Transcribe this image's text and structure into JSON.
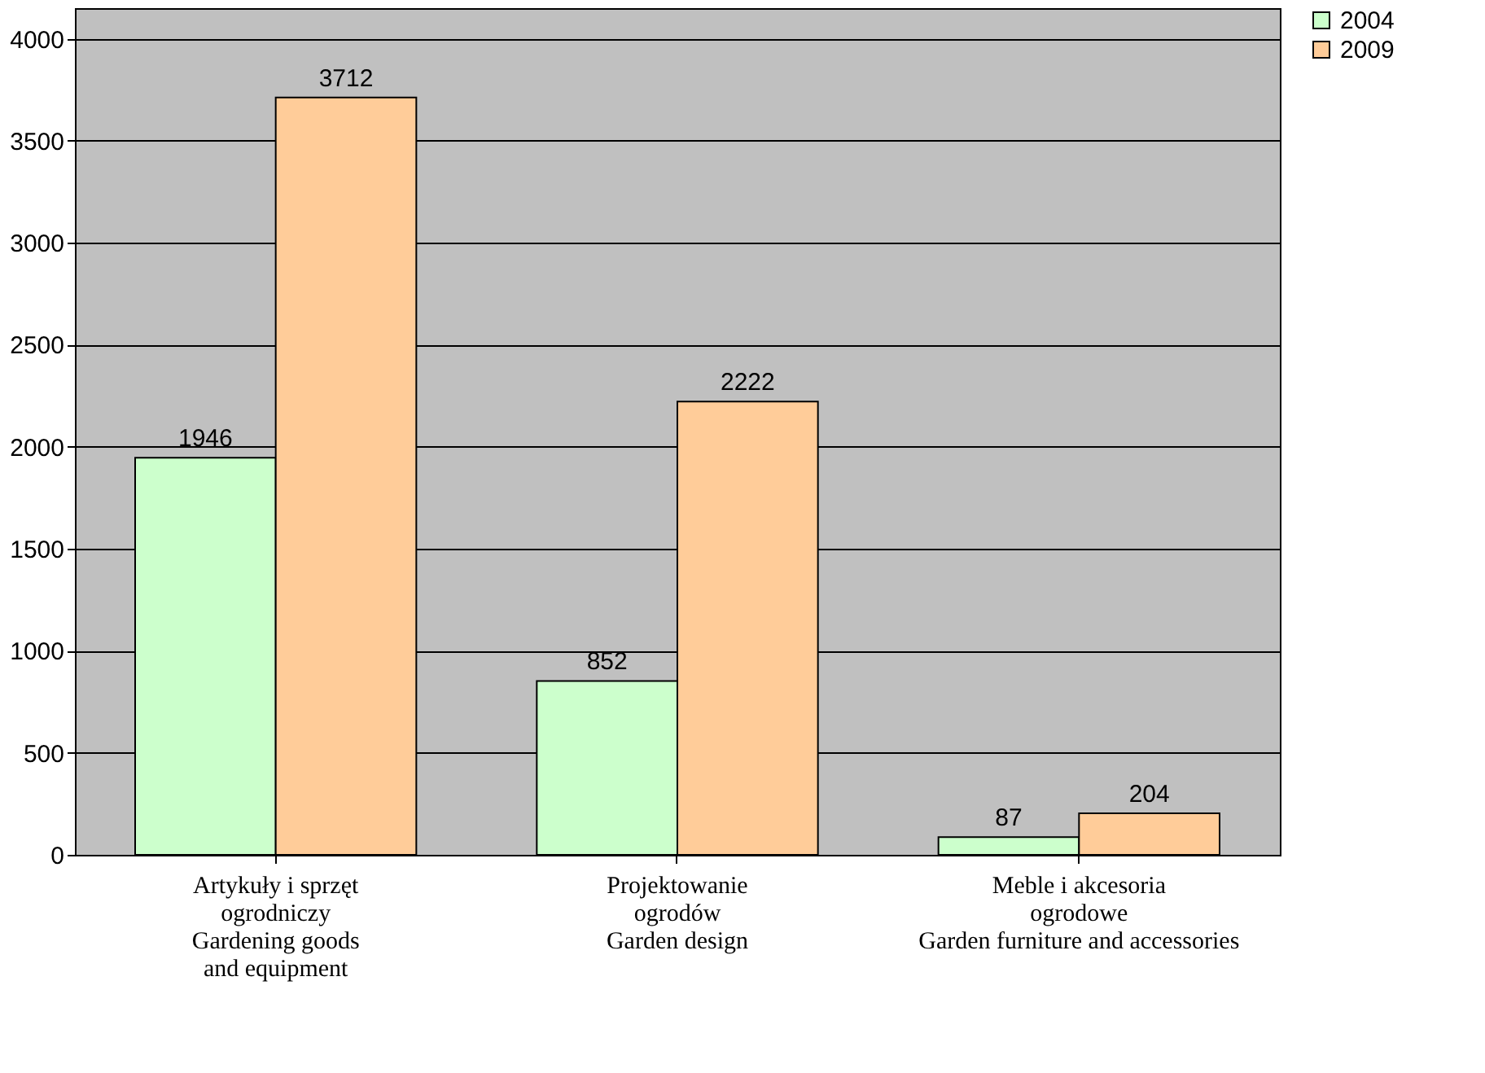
{
  "chart_data": {
    "type": "bar",
    "categories": [
      "Artykuły i sprzęt\nogrodniczy\nGardening goods\nand equipment",
      "Projektowanie\nogrodów\nGarden design",
      "Meble i akcesoria\nogrodowe\nGarden furniture and accessories"
    ],
    "series": [
      {
        "name": "2004",
        "color": "#ccffcc",
        "values": [
          1946,
          852,
          87
        ]
      },
      {
        "name": "2009",
        "color": "#ffcc99",
        "values": [
          3712,
          2222,
          204
        ]
      }
    ],
    "ylim": [
      0,
      4150
    ],
    "yticks": [
      0,
      500,
      1000,
      1500,
      2000,
      2500,
      3000,
      3500,
      4000
    ],
    "grid": "y",
    "legend": "right",
    "data_labels": true
  }
}
